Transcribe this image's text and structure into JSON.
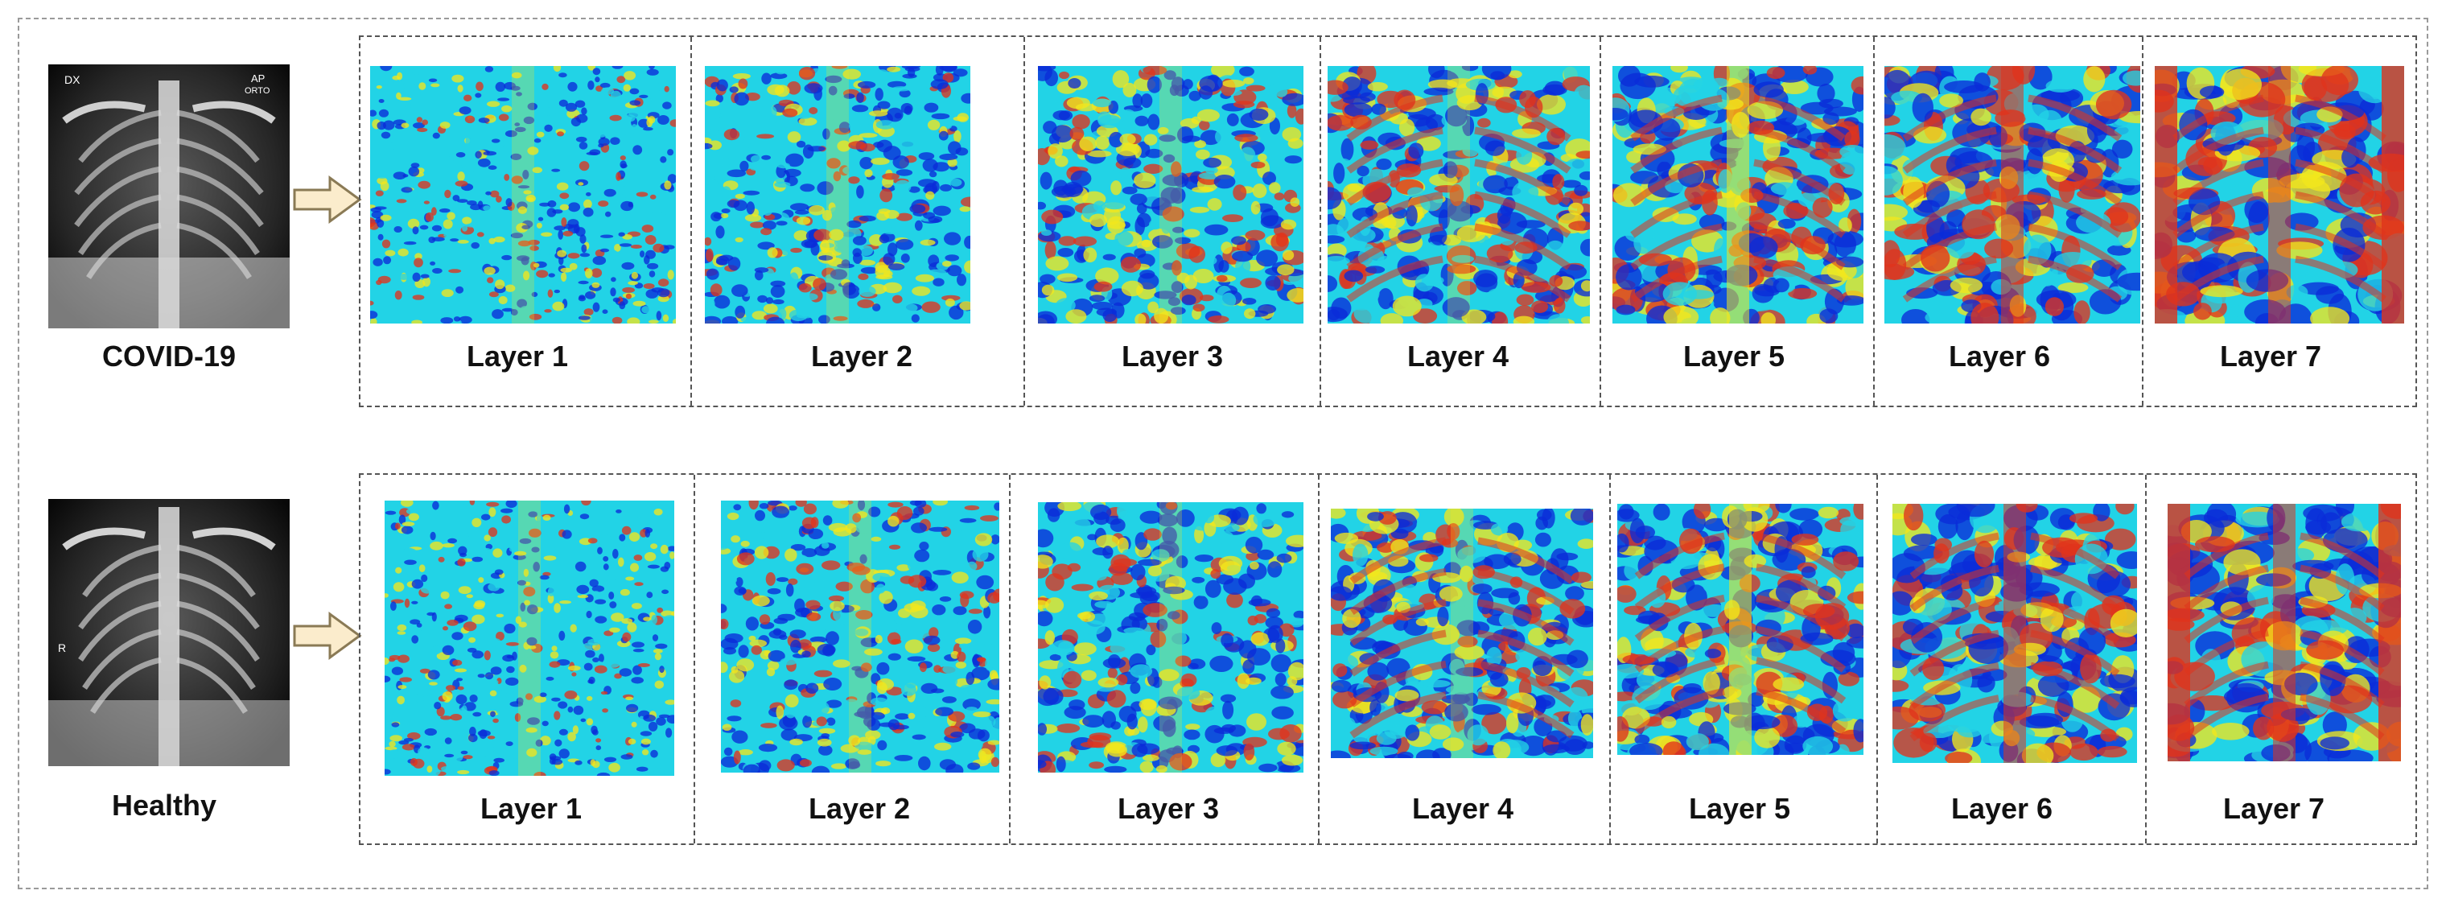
{
  "rows": [
    {
      "class_label": "COVID-19",
      "xray_marks": {
        "left": "DX",
        "right": "AP",
        "right2": "ORTO"
      },
      "layers": [
        "Layer 1",
        "Layer 2",
        "Layer 3",
        "Layer 4",
        "Layer 5",
        "Layer 6",
        "Layer 7"
      ]
    },
    {
      "class_label": "Healthy",
      "xray_marks": {
        "left": "R"
      },
      "layers": [
        "Layer 1",
        "Layer 2",
        "Layer 3",
        "Layer 4",
        "Layer 5",
        "Layer 6",
        "Layer 7"
      ]
    }
  ],
  "colors": {
    "jet_low": "#0a2bd9",
    "jet_mid": "#22d3e6",
    "jet_midhigh": "#f2e71c",
    "jet_high": "#e0331c",
    "arrow_fill": "#fbeccc",
    "arrow_stroke": "#8a7a55",
    "frame": "#555555"
  }
}
